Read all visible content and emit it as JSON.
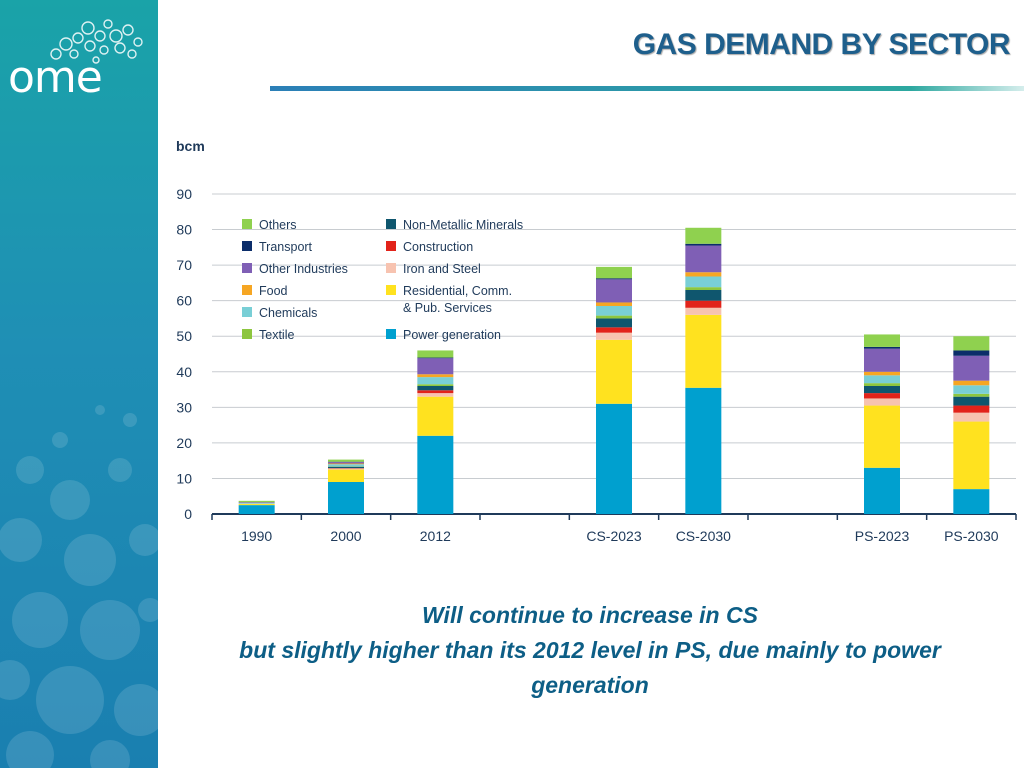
{
  "slide": {
    "title": "GAS DEMAND BY SECTOR",
    "logo_text": "ome",
    "caption_lines": [
      "Will continue to increase in CS",
      "but slightly higher than its 2012 level in PS, due mainly to power generation"
    ],
    "colors": {
      "title": "#1e5f8c",
      "caption": "#0d5e86",
      "sidebar_top": "#1aa3a8",
      "sidebar_bottom": "#1a7fb0"
    }
  },
  "chart_data": {
    "type": "bar",
    "stacked": true,
    "ylabel": "bcm",
    "ylim": [
      0,
      90
    ],
    "yticks": [
      0,
      10,
      20,
      30,
      40,
      50,
      60,
      70,
      80,
      90
    ],
    "ytick_labels": [
      "0",
      "10",
      "20",
      "30",
      "40",
      "50",
      "60",
      "70",
      "80",
      "90"
    ],
    "grid": true,
    "legend_position": "top-left",
    "categories": [
      "1990",
      "2000",
      "2012",
      "",
      "CS-2023",
      "CS-2030",
      "",
      "PS-2023",
      "PS-2030"
    ],
    "series": [
      {
        "name": "Power generation",
        "color": "#00a0cf",
        "values": [
          2.5,
          9,
          22,
          null,
          31,
          35.5,
          null,
          13,
          7
        ]
      },
      {
        "name": "Residential, Comm. & Pub. Services",
        "color": "#ffe21f",
        "values": [
          0.3,
          3.5,
          11,
          null,
          18,
          20.5,
          null,
          17.5,
          19
        ]
      },
      {
        "name": "Iron and Steel",
        "color": "#f7c3b0",
        "values": [
          0.1,
          0.3,
          1,
          null,
          2,
          2,
          null,
          2,
          2.5
        ]
      },
      {
        "name": "Construction",
        "color": "#e2231a",
        "values": [
          0,
          0.1,
          0.8,
          null,
          1.5,
          2,
          null,
          1.5,
          2
        ]
      },
      {
        "name": "Non-Metallic Minerals",
        "color": "#0f566e",
        "values": [
          0,
          0.4,
          1.2,
          null,
          2.5,
          3,
          null,
          2,
          2.5
        ]
      },
      {
        "name": "Textile",
        "color": "#8dc63f",
        "values": [
          0,
          0.1,
          0.5,
          null,
          0.8,
          0.8,
          null,
          0.8,
          0.8
        ]
      },
      {
        "name": "Chemicals",
        "color": "#79cfd6",
        "values": [
          0.2,
          0.6,
          2,
          null,
          2.7,
          3,
          null,
          2.2,
          2.4
        ]
      },
      {
        "name": "Food",
        "color": "#f6a623",
        "values": [
          0,
          0.2,
          0.8,
          null,
          1,
          1.2,
          null,
          1,
          1.3
        ]
      },
      {
        "name": "Other Industries",
        "color": "#7f5fb5",
        "values": [
          0.2,
          0.4,
          4.5,
          null,
          6.5,
          7.5,
          null,
          6.5,
          7
        ]
      },
      {
        "name": "Transport",
        "color": "#0b2d6a",
        "values": [
          0,
          0.1,
          0.2,
          null,
          0.3,
          0.5,
          null,
          0.5,
          1.5
        ]
      },
      {
        "name": "Others",
        "color": "#8fd14f",
        "values": [
          0.4,
          0.6,
          2,
          null,
          3.2,
          4.5,
          null,
          3.5,
          4
        ]
      }
    ],
    "legend_layout": [
      [
        "Others",
        "Non-Metallic Minerals"
      ],
      [
        "Transport",
        "Construction"
      ],
      [
        "Other Industries",
        "Iron and Steel"
      ],
      [
        "Food",
        "Residential, Comm. & Pub. Services"
      ],
      [
        "Chemicals",
        null
      ],
      [
        "Textile",
        "Power generation"
      ]
    ]
  }
}
